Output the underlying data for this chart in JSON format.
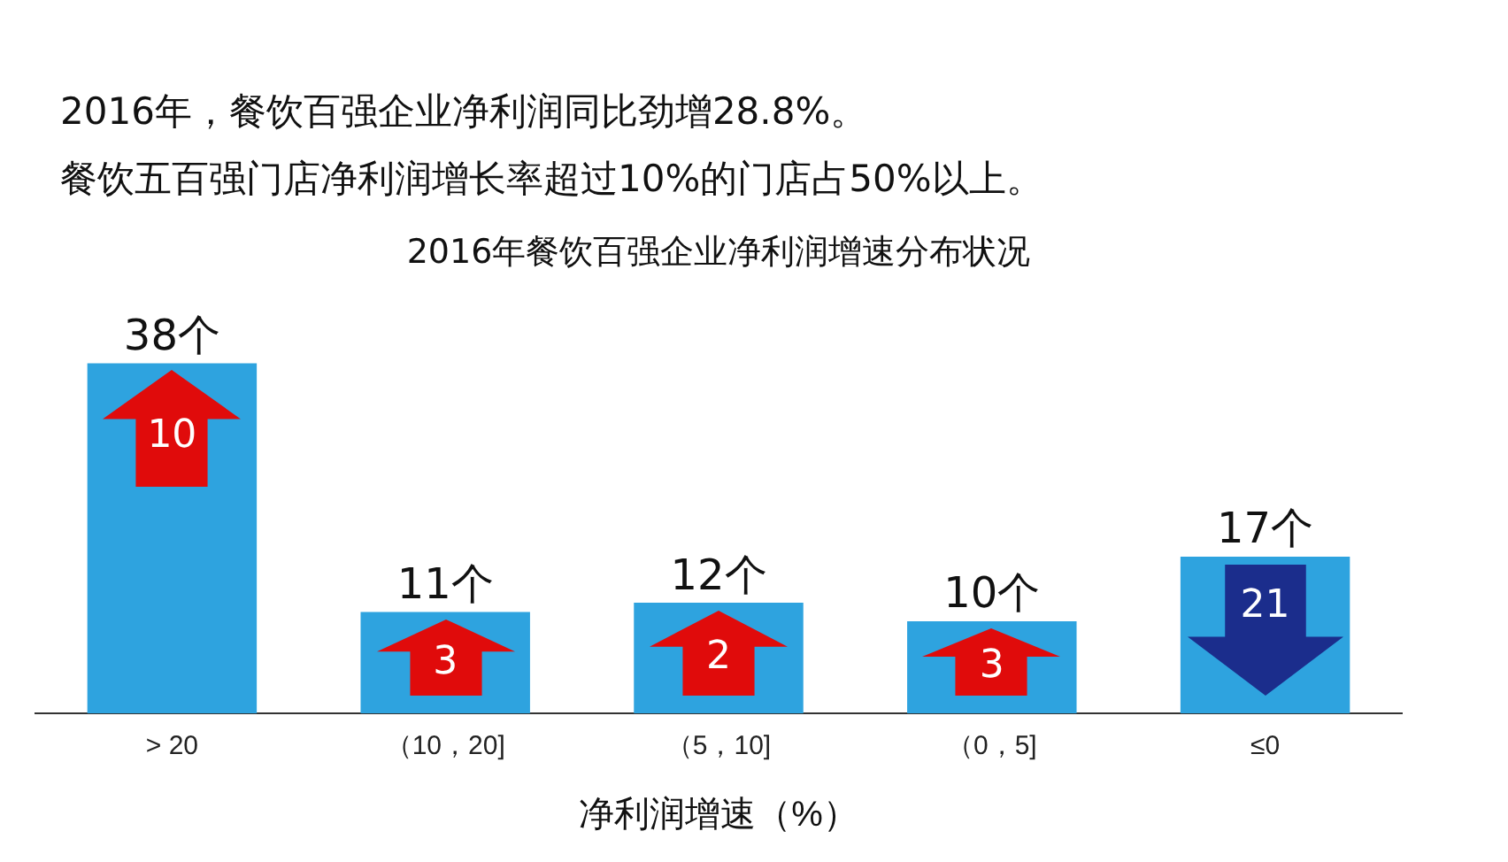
{
  "chart_data": {
    "type": "bar",
    "title": "2016年餐饮百强企业净利润增速分布状况",
    "xlabel": "净利润增速（%）",
    "categories": [
      "> 20",
      "（10，20]",
      "（5，10]",
      "（0，5]",
      "≤0"
    ],
    "values": [
      38,
      11,
      12,
      10,
      17
    ],
    "value_labels": [
      "38个",
      "11个",
      "12个",
      "10个",
      "17个"
    ],
    "color": "#2ea3df",
    "grid": false,
    "legend": false,
    "tick_labels": "x",
    "annotations": [
      "2016年，餐饮百强企业净利润同比劲增28.8%。",
      "餐饮五百强门店净利润增长率超过10%的门店占50%以上。",
      "10",
      "3",
      "2",
      "3",
      "21"
    ]
  }
}
